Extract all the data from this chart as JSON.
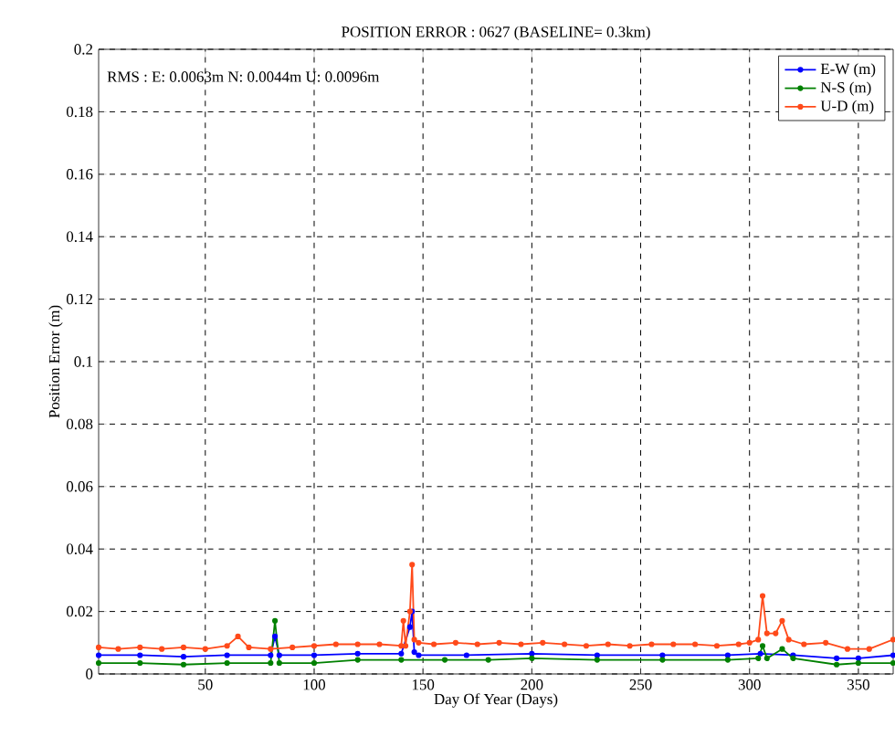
{
  "chart_data": {
    "type": "line",
    "title": "POSITION ERROR : 0627 (BASELINE= 0.3km)",
    "xlabel": "Day Of Year (Days)",
    "ylabel": "Position Error (m)",
    "annotations": [
      "RMS : E: 0.0063m N: 0.0044m U: 0.0096m"
    ],
    "series": [
      {
        "name": "E-W (m)",
        "color": "#0000ff",
        "x": [
          1,
          20,
          40,
          60,
          80,
          82,
          84,
          100,
          120,
          140,
          144,
          145,
          146,
          148,
          170,
          200,
          230,
          260,
          290,
          305,
          320,
          340,
          350,
          366
        ],
        "values": [
          0.006,
          0.006,
          0.0055,
          0.006,
          0.006,
          0.012,
          0.006,
          0.006,
          0.0065,
          0.0065,
          0.015,
          0.02,
          0.007,
          0.006,
          0.006,
          0.0065,
          0.006,
          0.006,
          0.006,
          0.0065,
          0.006,
          0.005,
          0.005,
          0.006
        ]
      },
      {
        "name": "N-S (m)",
        "color": "#008000",
        "x": [
          1,
          20,
          40,
          60,
          80,
          82,
          84,
          100,
          120,
          140,
          160,
          180,
          200,
          230,
          260,
          290,
          304,
          306,
          308,
          315,
          320,
          340,
          350,
          366
        ],
        "values": [
          0.0035,
          0.0035,
          0.003,
          0.0035,
          0.0035,
          0.017,
          0.0035,
          0.0035,
          0.0045,
          0.0045,
          0.0045,
          0.0045,
          0.005,
          0.0045,
          0.0045,
          0.0045,
          0.005,
          0.009,
          0.005,
          0.008,
          0.005,
          0.003,
          0.0035,
          0.0035
        ]
      },
      {
        "name": "U-D (m)",
        "color": "#ff4a1a",
        "x": [
          1,
          10,
          20,
          30,
          40,
          50,
          60,
          65,
          70,
          80,
          90,
          100,
          110,
          120,
          130,
          140,
          141,
          142,
          144,
          145,
          146,
          148,
          155,
          165,
          175,
          185,
          195,
          205,
          215,
          225,
          235,
          245,
          255,
          265,
          275,
          285,
          295,
          300,
          304,
          306,
          308,
          312,
          315,
          318,
          325,
          335,
          345,
          355,
          366
        ],
        "values": [
          0.0085,
          0.008,
          0.0085,
          0.008,
          0.0085,
          0.008,
          0.009,
          0.012,
          0.0085,
          0.008,
          0.0085,
          0.009,
          0.0095,
          0.0095,
          0.0095,
          0.009,
          0.017,
          0.009,
          0.02,
          0.035,
          0.011,
          0.01,
          0.0095,
          0.01,
          0.0095,
          0.01,
          0.0095,
          0.01,
          0.0095,
          0.009,
          0.0095,
          0.009,
          0.0095,
          0.0095,
          0.0095,
          0.009,
          0.0095,
          0.01,
          0.011,
          0.025,
          0.013,
          0.013,
          0.017,
          0.011,
          0.0095,
          0.01,
          0.008,
          0.008,
          0.011
        ]
      }
    ],
    "xlim": [
      1,
      366
    ],
    "xticks": [
      50,
      100,
      150,
      200,
      250,
      300,
      350
    ],
    "ylim": [
      0,
      0.2
    ],
    "yticks": [
      0,
      0.02,
      0.04,
      0.06,
      0.08,
      0.1,
      0.12,
      0.14,
      0.16,
      0.18,
      0.2
    ],
    "grid": true,
    "legend": "top right",
    "marker": "circle",
    "line_style": "solid"
  }
}
